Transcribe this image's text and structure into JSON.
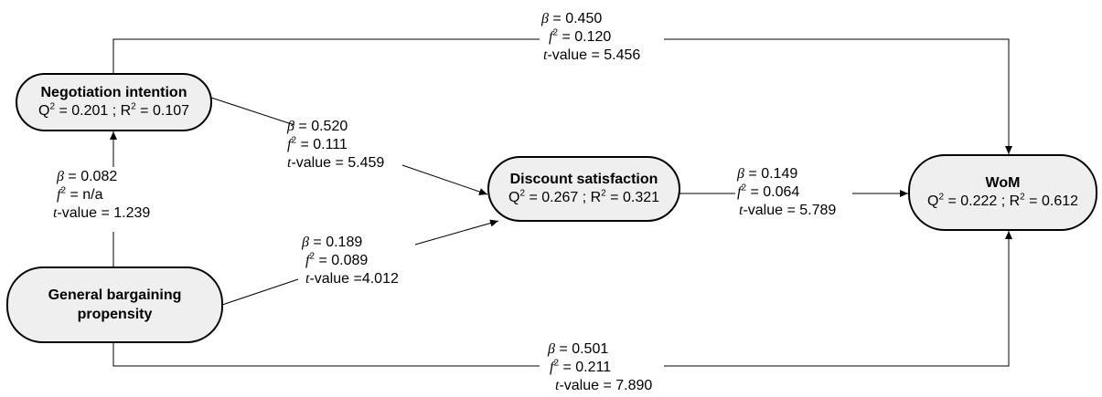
{
  "nodes": {
    "negotiation": {
      "title": "Negotiation intention",
      "q_label": "Q",
      "q_value": " = 0.201 ; R",
      "r_value": " = 0.107"
    },
    "discount": {
      "title": "Discount satisfaction",
      "q_label": "Q",
      "q_value": " = 0.267 ; R",
      "r_value": " = 0.321"
    },
    "wom": {
      "title": "WoM",
      "q_label": "Q",
      "q_value": " = 0.222 ; R",
      "r_value": " = 0.612"
    },
    "general": {
      "title_line1": "General bargaining",
      "title_line2": "propensity"
    }
  },
  "paths": {
    "ni_wom": {
      "beta": " = 0.450",
      "f2": " = 0.120",
      "t": "-value = 5.456"
    },
    "ni_ds": {
      "beta": " = 0.520",
      "f2": " = 0.111",
      "t": "-value = 5.459"
    },
    "gbp_ni": {
      "beta": " = 0.082",
      "f2": " = n/a",
      "t": "-value = 1.239"
    },
    "gbp_ds": {
      "beta": " = 0.189",
      "f2": " = 0.089",
      "t": "-value =4.012"
    },
    "ds_wom": {
      "beta": " = 0.149",
      "f2": " = 0.064",
      "t": "-value = 5.789"
    },
    "gbp_wom": {
      "beta": " = 0.501",
      "f2": " = 0.211",
      "t": "-value = 7.890"
    }
  },
  "symbols": {
    "beta": "β",
    "f": "f",
    "two": "2",
    "t": "t"
  }
}
